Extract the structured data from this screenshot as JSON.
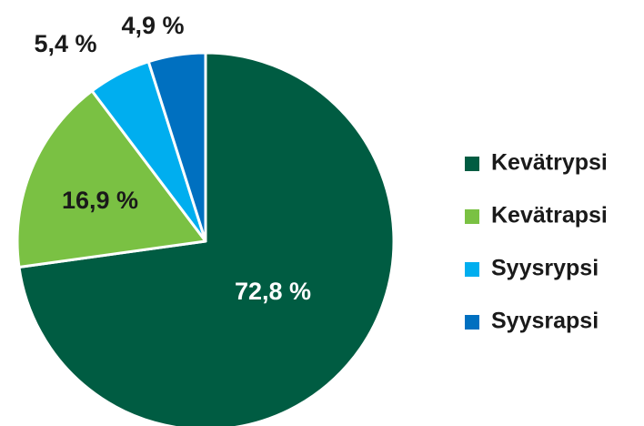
{
  "chart_data": {
    "type": "pie",
    "categories": [
      "Kevätrypsi",
      "Kevätrapsi",
      "Syysrypsi",
      "Syysrapsi"
    ],
    "values": [
      72.8,
      16.9,
      5.4,
      4.9
    ],
    "value_labels": [
      "72,8 %",
      "16,9 %",
      "5,4 %",
      "4,9 %"
    ],
    "colors": [
      "#005c42",
      "#7ac143",
      "#00aeef",
      "#0070c0"
    ],
    "legend": "right"
  }
}
